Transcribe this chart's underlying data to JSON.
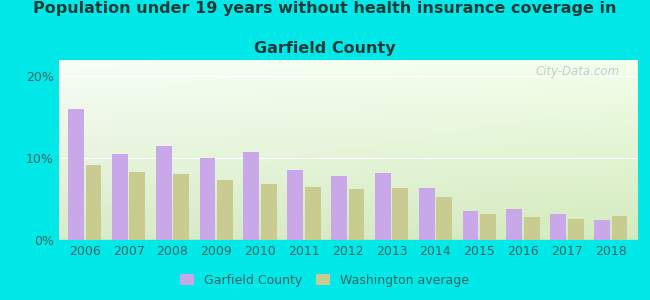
{
  "years": [
    2006,
    2007,
    2008,
    2009,
    2010,
    2011,
    2012,
    2013,
    2014,
    2015,
    2016,
    2017,
    2018
  ],
  "garfield": [
    16.0,
    10.5,
    11.5,
    10.0,
    10.7,
    8.5,
    7.8,
    8.2,
    6.3,
    3.5,
    3.8,
    3.2,
    2.5
  ],
  "washington": [
    9.2,
    8.3,
    8.1,
    7.3,
    6.8,
    6.5,
    6.2,
    6.4,
    5.3,
    3.2,
    2.8,
    2.6,
    2.9
  ],
  "garfield_color": "#c8a8e8",
  "washington_color": "#c8cc90",
  "title_line1": "Population under 19 years without health insurance coverage in",
  "title_line2": "Garfield County",
  "title_fontsize": 11.5,
  "title_color": "#1a3a3a",
  "bg_outer": "#00e8e8",
  "yticks": [
    0,
    10,
    20
  ],
  "ylim": [
    0,
    22
  ],
  "watermark": "City-Data.com",
  "legend_garfield": "Garfield County",
  "legend_washington": "Washington average",
  "tick_color": "#336666",
  "label_fontsize": 9
}
